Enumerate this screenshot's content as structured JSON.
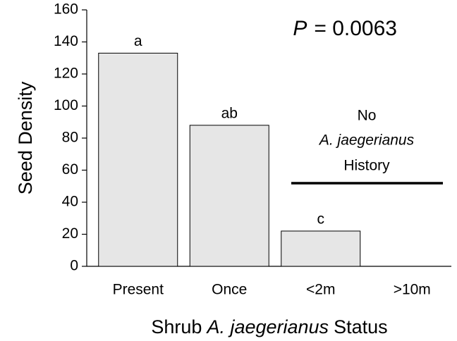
{
  "chart_data": {
    "type": "bar",
    "categories": [
      "Present",
      "Once",
      "<2m",
      ">10m"
    ],
    "values": [
      133,
      88,
      22,
      0
    ],
    "letters": [
      "a",
      "ab",
      "c",
      null
    ],
    "color": "#e6e6e6",
    "ylim": [
      0,
      160
    ],
    "yticks": [
      0,
      20,
      40,
      60,
      80,
      100,
      120,
      140,
      160
    ],
    "y_label": "Seed Density",
    "x_label": [
      "Shrub",
      "A. jaegerianus",
      "Status"
    ],
    "p_annotation": [
      "P",
      "= 0.0063"
    ],
    "history_note": [
      "No",
      "A. jaegerianus",
      "History"
    ]
  }
}
